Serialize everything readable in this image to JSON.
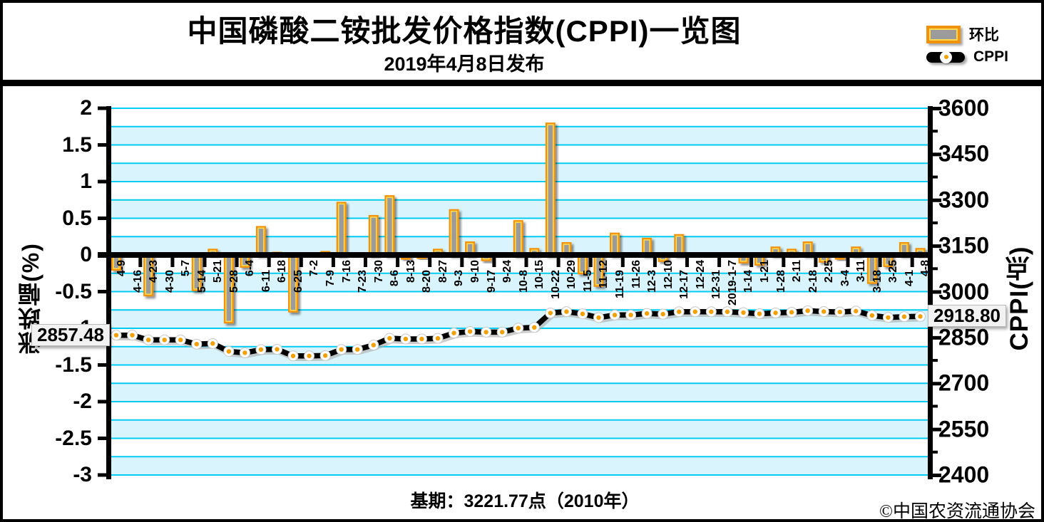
{
  "header": {
    "title": "中国磷酸二铵批发价格指数(CPPI)一览图",
    "subtitle": "2019年4月8日发布"
  },
  "legend": {
    "bar_label": "环比",
    "line_label": "CPPI"
  },
  "footer": {
    "base_period": "基期：3221.77点（2010年）",
    "copyright": "©中国农资流通协会"
  },
  "chart_data": {
    "type": "combo-bar-line",
    "categories": [
      "4-9",
      "4-16",
      "4-23",
      "4-30",
      "5-7",
      "5-14",
      "5-21",
      "5-28",
      "6-4",
      "6-11",
      "6-18",
      "6-25",
      "7-2",
      "7-9",
      "7-16",
      "7-23",
      "7-30",
      "8-6",
      "8-13",
      "8-20",
      "8-27",
      "9-3",
      "9-10",
      "9-17",
      "9-24",
      "10-8",
      "10-15",
      "10-22",
      "10-29",
      "11-5",
      "11-12",
      "11-19",
      "11-26",
      "12-3",
      "12-10",
      "12-17",
      "12-24",
      "12-31",
      "2019-1-7",
      "1-14",
      "1-21",
      "1-28",
      "2-11",
      "2-18",
      "2-25",
      "3-4",
      "3-11",
      "3-18",
      "3-25",
      "4-1",
      "4-8"
    ],
    "series": [
      {
        "name": "环比",
        "type": "bar",
        "axis": "left",
        "unit": "%",
        "values": [
          -0.2,
          0,
          -0.55,
          0,
          0,
          -0.48,
          0.07,
          -0.92,
          -0.16,
          0.38,
          0.03,
          -0.77,
          0,
          0.04,
          0.71,
          0,
          0.53,
          0.8,
          -0.05,
          -0.04,
          0.07,
          0.61,
          0.17,
          -0.07,
          0,
          0.46,
          0.08,
          1.79,
          0.16,
          -0.25,
          -0.42,
          0.29,
          0,
          0.22,
          -0.08,
          0.27,
          0,
          0,
          0,
          -0.1,
          -0.13,
          0.1,
          0.07,
          0.17,
          -0.09,
          -0.05,
          0.1,
          -0.38,
          -0.15,
          0.16,
          0.08
        ]
      },
      {
        "name": "CPPI",
        "type": "line",
        "axis": "right",
        "unit": "点",
        "values": [
          2857.48,
          2857.5,
          2842.0,
          2842.0,
          2842.0,
          2828.3,
          2830.3,
          2804.3,
          2799.8,
          2810.4,
          2811.3,
          2789.6,
          2789.6,
          2790.7,
          2810.8,
          2810.8,
          2825.1,
          2847.4,
          2845.1,
          2845.1,
          2847.1,
          2864.5,
          2869.4,
          2867.4,
          2867.4,
          2880.6,
          2882.9,
          2930.0,
          2934.5,
          2927.2,
          2915.0,
          2923.5,
          2923.5,
          2928.6,
          2926.3,
          2934.2,
          2934.2,
          2934.2,
          2934.2,
          2931.3,
          2927.5,
          2930.4,
          2932.5,
          2937.5,
          2934.8,
          2933.4,
          2936.3,
          2922.0,
          2915.5,
          2918.0,
          2918.8
        ]
      }
    ],
    "left_axis": {
      "title": "涨跌幅(%)",
      "min": -3,
      "max": 2,
      "tick_step": 0.5,
      "ticks": [
        "2",
        "1.5",
        "1",
        "0.5",
        "0",
        "-0.5",
        "-1",
        "-1.5",
        "-2",
        "-2.5",
        "-3"
      ]
    },
    "right_axis": {
      "title": "CPPI(点)",
      "min": 2400,
      "max": 3600,
      "tick_step": 150,
      "ticks": [
        "3600",
        "3450",
        "3300",
        "3150",
        "3000",
        "2850",
        "2700",
        "2550",
        "2400"
      ]
    },
    "annotations": {
      "first_point_label": "2857.48",
      "last_point_label": "2918.80"
    },
    "grid": {
      "line_color": "#00ccf2",
      "band_color": "#d9f4fc",
      "on": true,
      "legend_position": "top-right"
    },
    "colors": {
      "bar_fill": "#9b9b9b",
      "bar_border": "#f0920e",
      "bar_inner": "#ffd94f",
      "line": "#000000",
      "marker_fill": "#ffffff",
      "marker_dot": "#f2a007",
      "axis": "#000000"
    }
  }
}
